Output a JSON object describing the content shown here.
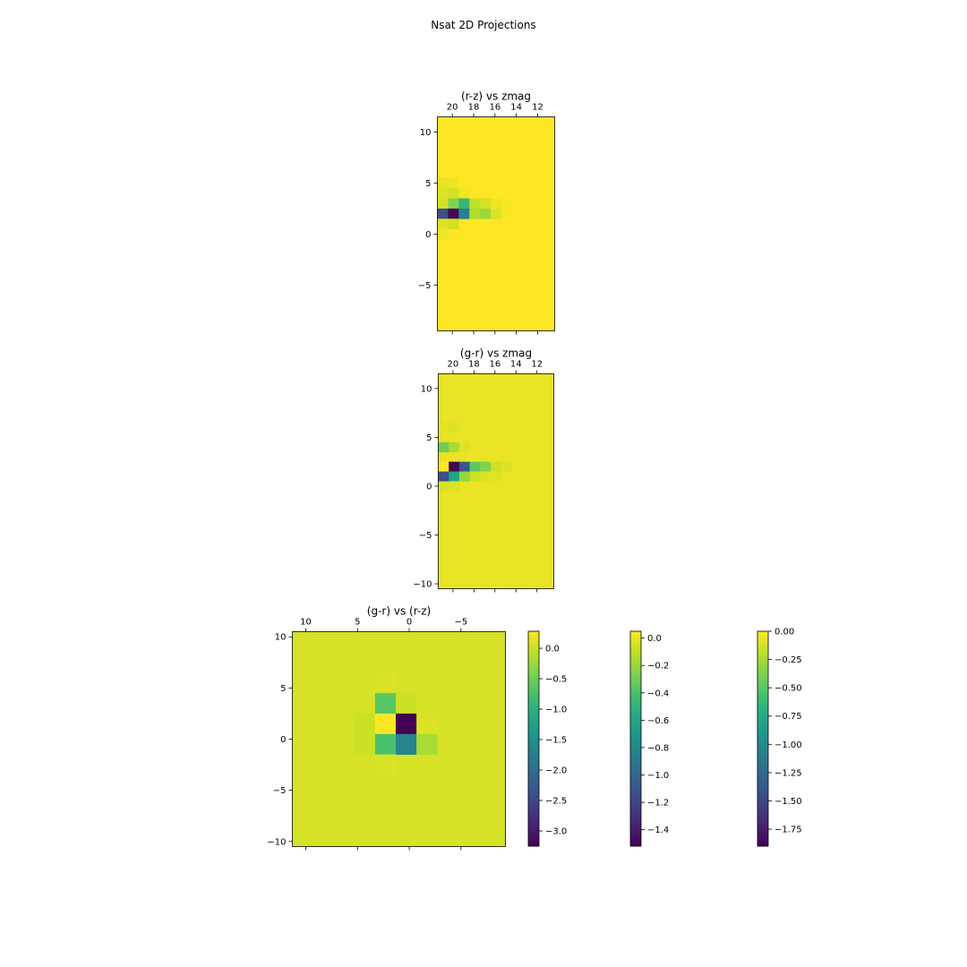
{
  "title": "Nsat 2D Projections",
  "chart_data": [
    {
      "type": "heatmap",
      "title": "(r-z) vs zmag",
      "xlabel": "",
      "ylabel": "",
      "x_edges": [
        21.4,
        20.4,
        19.4,
        18.4,
        17.4,
        16.4,
        15.4,
        14.4,
        13.4,
        12.4,
        11.4,
        10.4
      ],
      "y_edges": [
        11.5,
        10.5,
        9.5,
        8.5,
        7.5,
        6.5,
        5.5,
        4.5,
        3.5,
        2.5,
        1.5,
        0.5,
        -0.5,
        -1.5,
        -2.5,
        -3.5,
        -4.5,
        -5.5,
        -6.5,
        -7.5,
        -8.5,
        -9.5
      ],
      "xticks": [
        20,
        18,
        16,
        14,
        12
      ],
      "yticks": [
        10,
        5,
        0,
        -5
      ],
      "background": 0.28,
      "cells": [
        {
          "col": 0,
          "row": 6,
          "v": 0.15
        },
        {
          "col": 1,
          "row": 6,
          "v": 0.2
        },
        {
          "col": 0,
          "row": 7,
          "v": 0.1
        },
        {
          "col": 1,
          "row": 7,
          "v": 0.05
        },
        {
          "col": 2,
          "row": 7,
          "v": 0.22
        },
        {
          "col": 0,
          "row": 8,
          "v": 0.05
        },
        {
          "col": 1,
          "row": 8,
          "v": -0.4
        },
        {
          "col": 2,
          "row": 8,
          "v": -0.9
        },
        {
          "col": 3,
          "row": 8,
          "v": -0.05
        },
        {
          "col": 4,
          "row": 8,
          "v": 0.05
        },
        {
          "col": 5,
          "row": 8,
          "v": 0.2
        },
        {
          "col": 6,
          "row": 8,
          "v": 0.25
        },
        {
          "col": 0,
          "row": 9,
          "v": -2.4
        },
        {
          "col": 1,
          "row": 9,
          "v": -3.2
        },
        {
          "col": 2,
          "row": 9,
          "v": -1.7
        },
        {
          "col": 3,
          "row": 9,
          "v": -0.15
        },
        {
          "col": 4,
          "row": 9,
          "v": -0.25
        },
        {
          "col": 5,
          "row": 9,
          "v": 0.1
        },
        {
          "col": 6,
          "row": 9,
          "v": 0.25
        },
        {
          "col": 0,
          "row": 10,
          "v": 0.1
        },
        {
          "col": 1,
          "row": 10,
          "v": 0.05
        },
        {
          "col": 0,
          "row": 11,
          "v": 0.2
        }
      ],
      "colorbar": {
        "ticks": [
          0.0,
          -0.5,
          -1.0,
          -1.5,
          -2.0,
          -2.5,
          -3.0
        ],
        "tick_labels": [
          "0.0",
          "−0.5",
          "−1.0",
          "−1.5",
          "−2.0",
          "−2.5",
          "−3.0"
        ],
        "vmin": -3.25,
        "vmax": 0.28
      }
    },
    {
      "type": "heatmap",
      "title": "(g-r) vs zmag",
      "xlabel": "",
      "ylabel": "",
      "x_edges": [
        21.4,
        20.4,
        19.4,
        18.4,
        17.4,
        16.4,
        15.4,
        14.4,
        13.4,
        12.4,
        11.4,
        10.4
      ],
      "y_edges": [
        11.5,
        10.5,
        9.5,
        8.5,
        7.5,
        6.5,
        5.5,
        4.5,
        3.5,
        2.5,
        1.5,
        0.5,
        -0.5,
        -1.5,
        -2.5,
        -3.5,
        -4.5,
        -5.5,
        -6.5,
        -7.5,
        -8.5,
        -9.5,
        -10.5
      ],
      "xticks": [
        20,
        18,
        16,
        14,
        12
      ],
      "yticks": [
        10,
        5,
        0,
        -5,
        -10
      ],
      "background": 0.0,
      "cells": [
        {
          "col": 0,
          "row": 5,
          "v": -0.02
        },
        {
          "col": 1,
          "row": 5,
          "v": -0.03
        },
        {
          "col": 0,
          "row": 7,
          "v": -0.3
        },
        {
          "col": 1,
          "row": 7,
          "v": -0.15
        },
        {
          "col": 2,
          "row": 7,
          "v": -0.03
        },
        {
          "col": 0,
          "row": 9,
          "v": 0.05
        },
        {
          "col": 1,
          "row": 9,
          "v": -1.5
        },
        {
          "col": 2,
          "row": 9,
          "v": -1.1
        },
        {
          "col": 3,
          "row": 9,
          "v": -0.35
        },
        {
          "col": 4,
          "row": 9,
          "v": -0.25
        },
        {
          "col": 5,
          "row": 9,
          "v": -0.07
        },
        {
          "col": 6,
          "row": 9,
          "v": -0.03
        },
        {
          "col": 0,
          "row": 10,
          "v": -1.15
        },
        {
          "col": 1,
          "row": 10,
          "v": -0.6
        },
        {
          "col": 2,
          "row": 10,
          "v": -0.2
        },
        {
          "col": 3,
          "row": 10,
          "v": -0.07
        },
        {
          "col": 4,
          "row": 10,
          "v": -0.03
        },
        {
          "col": 5,
          "row": 10,
          "v": -0.02
        },
        {
          "col": 0,
          "row": 11,
          "v": -0.05
        },
        {
          "col": 1,
          "row": 11,
          "v": -0.03
        }
      ],
      "colorbar": {
        "ticks": [
          0.0,
          -0.2,
          -0.4,
          -0.6,
          -0.8,
          -1.0,
          -1.2,
          -1.4
        ],
        "tick_labels": [
          "0.0",
          "−0.2",
          "−0.4",
          "−0.6",
          "−0.8",
          "−1.0",
          "−1.2",
          "−1.4"
        ],
        "vmin": -1.52,
        "vmax": 0.05
      }
    },
    {
      "type": "heatmap",
      "title": "(g-r) vs (r-z)",
      "xlabel": "",
      "ylabel": "",
      "x_edges": [
        11.3,
        9.3,
        7.3,
        5.3,
        3.3,
        1.3,
        -0.7,
        -2.7,
        -4.7,
        -6.7,
        -8.7,
        -9.3
      ],
      "y_edges": [
        10.5,
        8.5,
        6.5,
        4.5,
        2.5,
        0.5,
        -1.5,
        -3.5,
        -5.5,
        -7.5,
        -9.5,
        -10.5
      ],
      "xticks": [
        10,
        5,
        0,
        -5
      ],
      "yticks": [
        10,
        5,
        0,
        -5,
        -10
      ],
      "background": -0.12,
      "cells": [
        {
          "col": 4,
          "row": 2,
          "v": -0.1
        },
        {
          "col": 4,
          "row": 3,
          "v": -0.5
        },
        {
          "col": 5,
          "row": 3,
          "v": -0.15
        },
        {
          "col": 3,
          "row": 4,
          "v": -0.15
        },
        {
          "col": 4,
          "row": 4,
          "v": 0.0
        },
        {
          "col": 5,
          "row": 4,
          "v": -1.9
        },
        {
          "col": 6,
          "row": 4,
          "v": -0.1
        },
        {
          "col": 3,
          "row": 5,
          "v": -0.15
        },
        {
          "col": 4,
          "row": 5,
          "v": -0.55
        },
        {
          "col": 5,
          "row": 5,
          "v": -1.05
        },
        {
          "col": 6,
          "row": 5,
          "v": -0.25
        },
        {
          "col": 4,
          "row": 6,
          "v": -0.1
        }
      ],
      "colorbar": {
        "ticks": [
          0.0,
          -0.25,
          -0.5,
          -0.75,
          -1.0,
          -1.25,
          -1.5,
          -1.75
        ],
        "tick_labels": [
          "0.00",
          "−0.25",
          "−0.50",
          "−0.75",
          "−1.00",
          "−1.25",
          "−1.50",
          "−1.75"
        ],
        "vmin": -1.9,
        "vmax": 0.0
      }
    }
  ]
}
